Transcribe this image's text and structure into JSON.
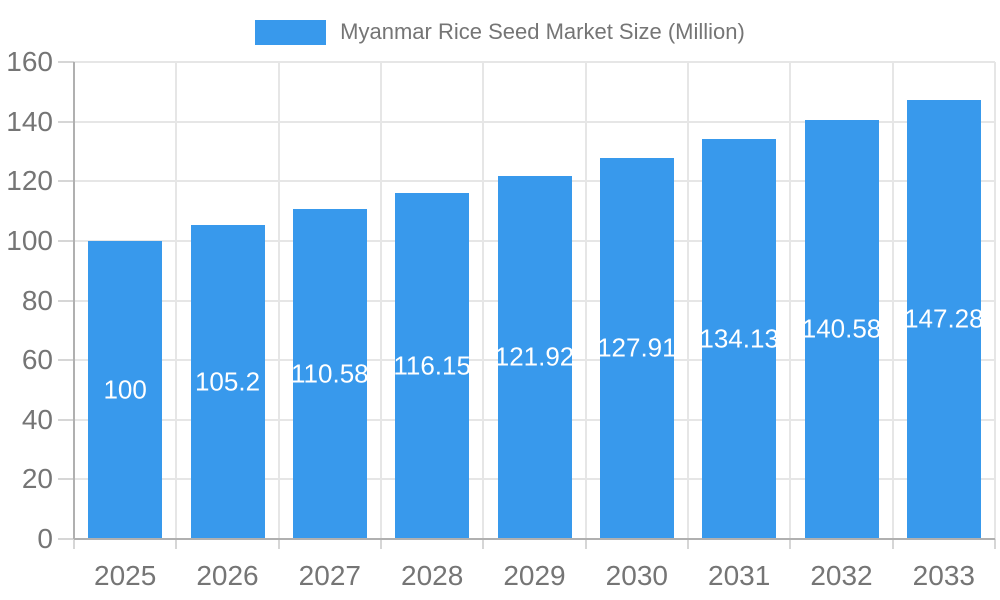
{
  "page": {
    "background": "#ffffff"
  },
  "chart_data": {
    "type": "bar",
    "title": "Myanmar Rice Seed Market Size (Million)",
    "legend": {
      "position": "top",
      "entries": [
        "Myanmar Rice Seed Market Size (Million)"
      ]
    },
    "categories": [
      "2025",
      "2026",
      "2027",
      "2028",
      "2029",
      "2030",
      "2031",
      "2032",
      "2033"
    ],
    "series": [
      {
        "name": "Myanmar Rice Seed Market Size (Million)",
        "values": [
          100,
          105.2,
          110.58,
          116.15,
          121.92,
          127.91,
          134.13,
          140.58,
          147.28
        ],
        "color": "#3899EC"
      }
    ],
    "value_labels": [
      "100",
      "105.2",
      "110.58",
      "116.15",
      "121.92",
      "127.91",
      "134.13",
      "140.58",
      "147.28"
    ],
    "xlabel": "",
    "ylabel": "",
    "ylim": [
      0,
      160
    ],
    "yticks": [
      0,
      20,
      40,
      60,
      80,
      100,
      120,
      140,
      160
    ],
    "grid": true,
    "bar_label_color": "#ffffff",
    "axis_text_color": "#757575",
    "grid_color": "#e6e6e6",
    "axis_line_color": "#b0b0b0"
  }
}
